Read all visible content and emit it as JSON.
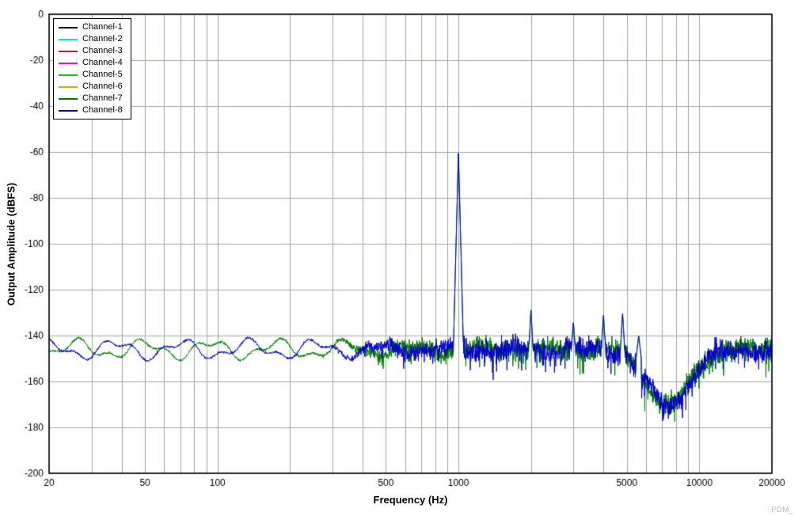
{
  "chart_data": {
    "type": "line",
    "title": "",
    "xlabel": "Frequency (Hz)",
    "ylabel": "Output Amplitude (dBFS)",
    "watermark": "PDM_",
    "xscale": "log",
    "xlim": [
      20,
      20000
    ],
    "ylim": [
      -200,
      0
    ],
    "ytick_step": 20,
    "xtick_labels": [
      20,
      50,
      100,
      500,
      1000,
      5000,
      10000,
      20000
    ],
    "grid": true,
    "grid_color": "#9aa89a",
    "legend_position": "top-left",
    "legend": [
      {
        "label": "Channel-1",
        "color": "#000000"
      },
      {
        "label": "Channel-2",
        "color": "#00e0ee"
      },
      {
        "label": "Channel-3",
        "color": "#ff0000"
      },
      {
        "label": "Channel-4",
        "color": "#ff00ff"
      },
      {
        "label": "Channel-5",
        "color": "#00cc00"
      },
      {
        "label": "Channel-6",
        "color": "#ff9900"
      },
      {
        "label": "Channel-7",
        "color": "#007700"
      },
      {
        "label": "Channel-8",
        "color": "#0000c8"
      }
    ],
    "visible_traces": [
      "Channel-7",
      "Channel-8"
    ],
    "spectrum": {
      "noise_floor_dbfs": -146,
      "noise_floor_low_freq_range_dbfs": [
        -152,
        -141
      ],
      "fundamental": {
        "freq_hz": 1000,
        "amplitude_dbfs": -60
      },
      "spurs": [
        {
          "freq_hz": 2000,
          "amplitude_dbfs": -129
        },
        {
          "freq_hz": 3000,
          "amplitude_dbfs": -134
        },
        {
          "freq_hz": 4000,
          "amplitude_dbfs": -131
        },
        {
          "freq_hz": 4800,
          "amplitude_dbfs": -130
        },
        {
          "freq_hz": 5600,
          "amplitude_dbfs": -140
        }
      ],
      "notch": {
        "freq_hz": 7400,
        "amplitude_dbfs": -170
      },
      "high_freq_noise_dbfs": -146
    }
  }
}
